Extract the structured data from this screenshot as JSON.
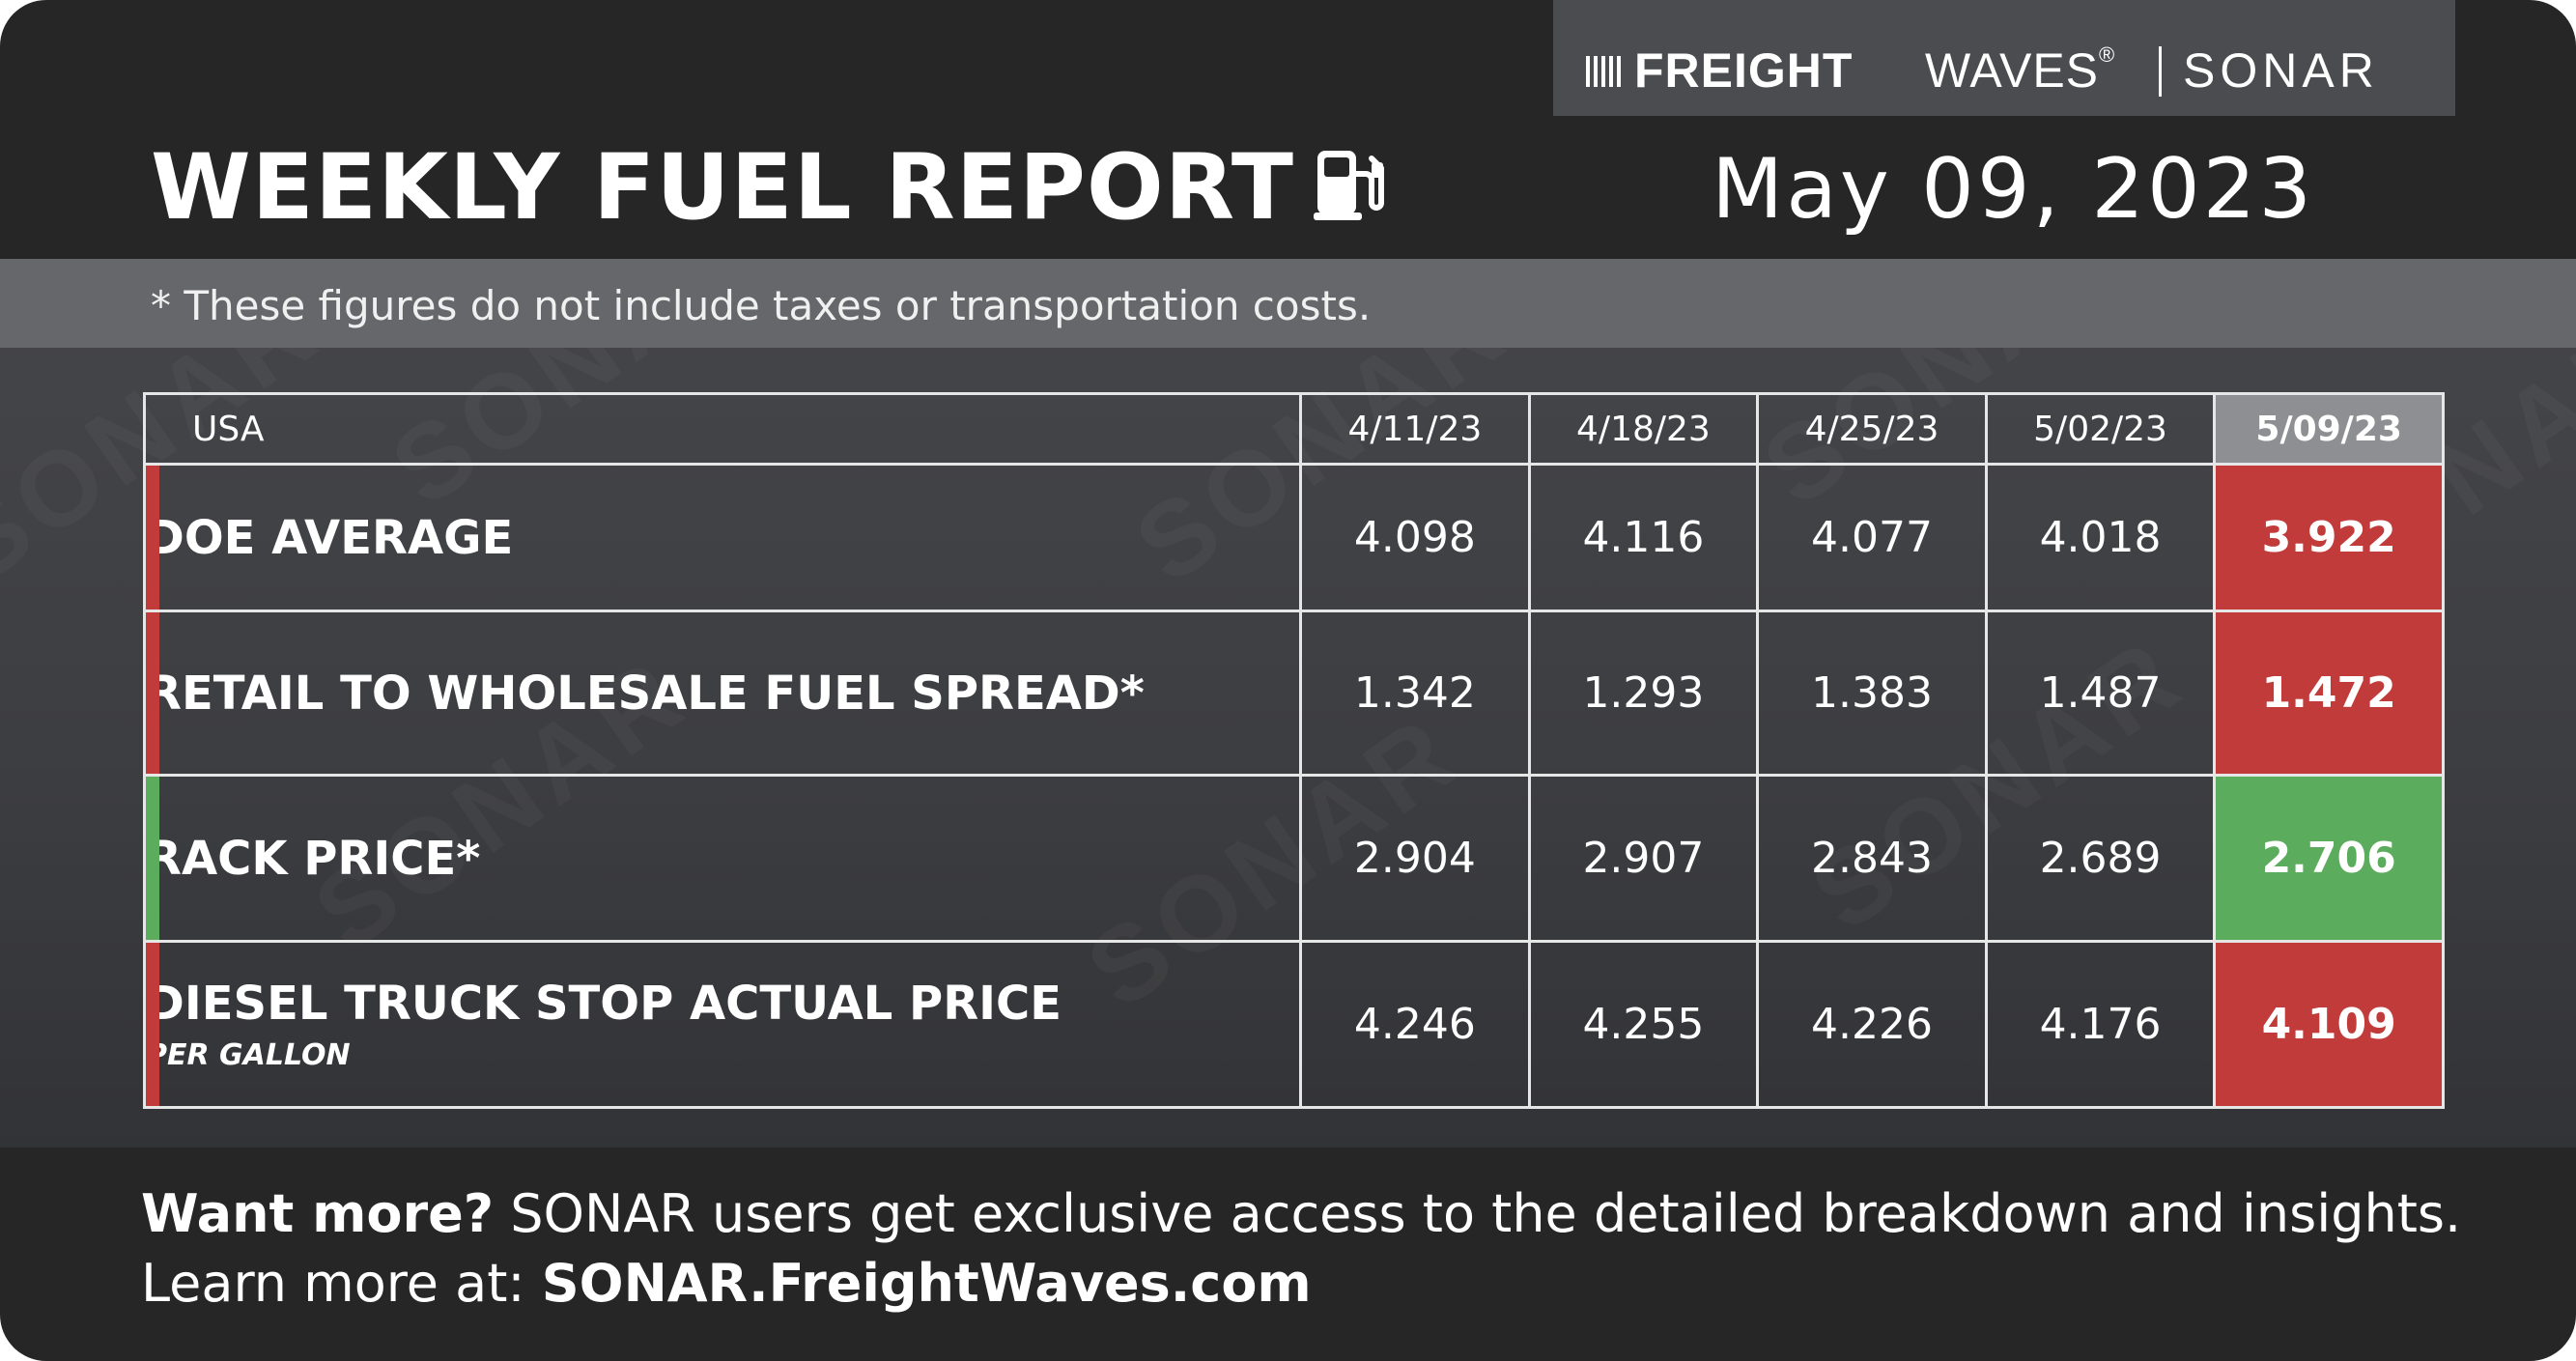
{
  "brand": {
    "freight": "FREIGHT",
    "waves": "WAVES",
    "mark": "®",
    "sonar": "SONAR"
  },
  "header": {
    "title": "WEEKLY FUEL REPORT",
    "icon": "fuel-pump-icon",
    "date": "May 09, 2023"
  },
  "note": "* These figures do not include taxes or transportation costs.",
  "watermark": "SONAR",
  "table": {
    "region": "USA",
    "columns": [
      "4/11/23",
      "4/18/23",
      "4/25/23",
      "5/02/23"
    ],
    "current_column": "5/09/23",
    "rows": [
      {
        "label": "DOE AVERAGE",
        "sublabel": "",
        "values": [
          "4.098",
          "4.116",
          "4.077",
          "4.018"
        ],
        "current": "3.922",
        "trend_color": "#c23b3b"
      },
      {
        "label": "RETAIL TO WHOLESALE FUEL SPREAD*",
        "sublabel": "",
        "values": [
          "1.342",
          "1.293",
          "1.383",
          "1.487"
        ],
        "current": "1.472",
        "trend_color": "#c23b3b"
      },
      {
        "label": "RACK PRICE*",
        "sublabel": "",
        "values": [
          "2.904",
          "2.907",
          "2.843",
          "2.689"
        ],
        "current": "2.706",
        "trend_color": "#5cac5e"
      },
      {
        "label": "DIESEL TRUCK STOP ACTUAL PRICE",
        "sublabel": "PER GALLON",
        "values": [
          "4.246",
          "4.255",
          "4.226",
          "4.176"
        ],
        "current": "4.109",
        "trend_color": "#c23b3b"
      }
    ]
  },
  "footer": {
    "lead": "Want more?",
    "text": " SONAR users get exclusive access to the detailed breakdown and insights.",
    "learn": "Learn more at: ",
    "link": "SONAR.FreightWaves.com"
  },
  "colors": {
    "background": "#262626",
    "panel": "#3d3e42",
    "down": "#b8383a",
    "up": "#5cac5e"
  }
}
